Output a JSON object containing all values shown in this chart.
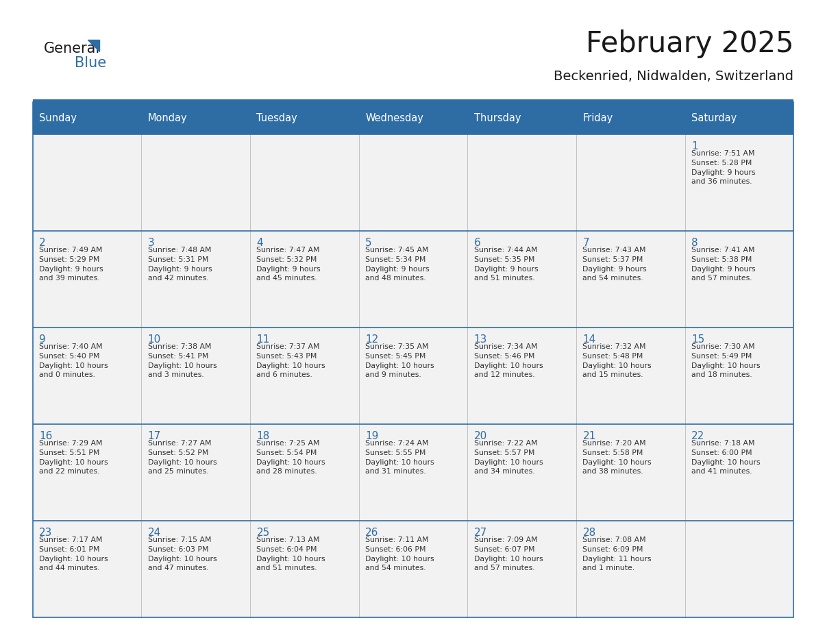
{
  "title": "February 2025",
  "subtitle": "Beckenried, Nidwalden, Switzerland",
  "days_of_week": [
    "Sunday",
    "Monday",
    "Tuesday",
    "Wednesday",
    "Thursday",
    "Friday",
    "Saturday"
  ],
  "header_bg": "#2E6DA4",
  "header_text": "#FFFFFF",
  "cell_bg_light": "#F2F2F2",
  "border_color": "#2E6DA4",
  "day_number_color": "#2E6DA4",
  "cell_text_color": "#333333",
  "calendar_data": [
    [
      null,
      null,
      null,
      null,
      null,
      null,
      {
        "day": 1,
        "sunrise": "7:51 AM",
        "sunset": "5:28 PM",
        "daylight": "9 hours\nand 36 minutes."
      }
    ],
    [
      {
        "day": 2,
        "sunrise": "7:49 AM",
        "sunset": "5:29 PM",
        "daylight": "9 hours\nand 39 minutes."
      },
      {
        "day": 3,
        "sunrise": "7:48 AM",
        "sunset": "5:31 PM",
        "daylight": "9 hours\nand 42 minutes."
      },
      {
        "day": 4,
        "sunrise": "7:47 AM",
        "sunset": "5:32 PM",
        "daylight": "9 hours\nand 45 minutes."
      },
      {
        "day": 5,
        "sunrise": "7:45 AM",
        "sunset": "5:34 PM",
        "daylight": "9 hours\nand 48 minutes."
      },
      {
        "day": 6,
        "sunrise": "7:44 AM",
        "sunset": "5:35 PM",
        "daylight": "9 hours\nand 51 minutes."
      },
      {
        "day": 7,
        "sunrise": "7:43 AM",
        "sunset": "5:37 PM",
        "daylight": "9 hours\nand 54 minutes."
      },
      {
        "day": 8,
        "sunrise": "7:41 AM",
        "sunset": "5:38 PM",
        "daylight": "9 hours\nand 57 minutes."
      }
    ],
    [
      {
        "day": 9,
        "sunrise": "7:40 AM",
        "sunset": "5:40 PM",
        "daylight": "10 hours\nand 0 minutes."
      },
      {
        "day": 10,
        "sunrise": "7:38 AM",
        "sunset": "5:41 PM",
        "daylight": "10 hours\nand 3 minutes."
      },
      {
        "day": 11,
        "sunrise": "7:37 AM",
        "sunset": "5:43 PM",
        "daylight": "10 hours\nand 6 minutes."
      },
      {
        "day": 12,
        "sunrise": "7:35 AM",
        "sunset": "5:45 PM",
        "daylight": "10 hours\nand 9 minutes."
      },
      {
        "day": 13,
        "sunrise": "7:34 AM",
        "sunset": "5:46 PM",
        "daylight": "10 hours\nand 12 minutes."
      },
      {
        "day": 14,
        "sunrise": "7:32 AM",
        "sunset": "5:48 PM",
        "daylight": "10 hours\nand 15 minutes."
      },
      {
        "day": 15,
        "sunrise": "7:30 AM",
        "sunset": "5:49 PM",
        "daylight": "10 hours\nand 18 minutes."
      }
    ],
    [
      {
        "day": 16,
        "sunrise": "7:29 AM",
        "sunset": "5:51 PM",
        "daylight": "10 hours\nand 22 minutes."
      },
      {
        "day": 17,
        "sunrise": "7:27 AM",
        "sunset": "5:52 PM",
        "daylight": "10 hours\nand 25 minutes."
      },
      {
        "day": 18,
        "sunrise": "7:25 AM",
        "sunset": "5:54 PM",
        "daylight": "10 hours\nand 28 minutes."
      },
      {
        "day": 19,
        "sunrise": "7:24 AM",
        "sunset": "5:55 PM",
        "daylight": "10 hours\nand 31 minutes."
      },
      {
        "day": 20,
        "sunrise": "7:22 AM",
        "sunset": "5:57 PM",
        "daylight": "10 hours\nand 34 minutes."
      },
      {
        "day": 21,
        "sunrise": "7:20 AM",
        "sunset": "5:58 PM",
        "daylight": "10 hours\nand 38 minutes."
      },
      {
        "day": 22,
        "sunrise": "7:18 AM",
        "sunset": "6:00 PM",
        "daylight": "10 hours\nand 41 minutes."
      }
    ],
    [
      {
        "day": 23,
        "sunrise": "7:17 AM",
        "sunset": "6:01 PM",
        "daylight": "10 hours\nand 44 minutes."
      },
      {
        "day": 24,
        "sunrise": "7:15 AM",
        "sunset": "6:03 PM",
        "daylight": "10 hours\nand 47 minutes."
      },
      {
        "day": 25,
        "sunrise": "7:13 AM",
        "sunset": "6:04 PM",
        "daylight": "10 hours\nand 51 minutes."
      },
      {
        "day": 26,
        "sunrise": "7:11 AM",
        "sunset": "6:06 PM",
        "daylight": "10 hours\nand 54 minutes."
      },
      {
        "day": 27,
        "sunrise": "7:09 AM",
        "sunset": "6:07 PM",
        "daylight": "10 hours\nand 57 minutes."
      },
      {
        "day": 28,
        "sunrise": "7:08 AM",
        "sunset": "6:09 PM",
        "daylight": "11 hours\nand 1 minute."
      },
      null
    ]
  ],
  "logo_text1": "General",
  "logo_text2": "Blue",
  "logo_color1": "#1a1a1a",
  "logo_color2": "#2E6DA4"
}
